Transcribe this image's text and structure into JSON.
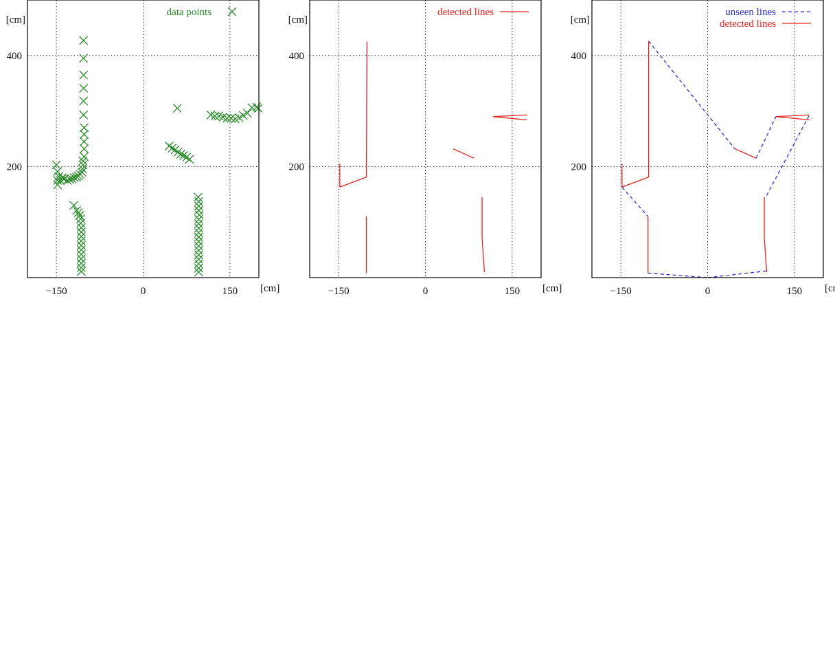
{
  "chart_data": [
    {
      "type": "scatter",
      "xlabel": "[cm]",
      "ylabel": "[cm]",
      "xlim": [
        -200,
        200
      ],
      "ylim": [
        0,
        500
      ],
      "xticks": [
        -150,
        0,
        150
      ],
      "yticks": [
        200,
        400
      ],
      "grid": true,
      "legend_position": "top-right",
      "series": [
        {
          "name": "data points",
          "color": "#2a8c2a",
          "marker": "x",
          "points": [
            [
              -150,
              203
            ],
            [
              -148,
              191
            ],
            [
              -148,
              175
            ],
            [
              -148,
              167
            ],
            [
              -146,
              182
            ],
            [
              -143,
              175
            ],
            [
              -140,
              180
            ],
            [
              -136,
              178
            ],
            [
              -131,
              175
            ],
            [
              -127,
              177
            ],
            [
              -123,
              178
            ],
            [
              -119,
              180
            ],
            [
              -115,
              181
            ],
            [
              -112,
              183
            ],
            [
              -109,
              186
            ],
            [
              -106,
              190
            ],
            [
              -105,
              196
            ],
            [
              -104,
              203
            ],
            [
              -104,
              210
            ],
            [
              -102,
              218
            ],
            [
              -102,
              232
            ],
            [
              -102,
              245
            ],
            [
              -102,
              258
            ],
            [
              -102,
              270
            ],
            [
              -103,
              293
            ],
            [
              -103,
              318
            ],
            [
              -103,
              341
            ],
            [
              -103,
              365
            ],
            [
              -103,
              395
            ],
            [
              -103,
              427
            ],
            [
              -120,
              130
            ],
            [
              -115,
              121
            ],
            [
              -112,
              117
            ],
            [
              -110,
              112
            ],
            [
              -108,
              106
            ],
            [
              -108,
              98
            ],
            [
              -107,
              90
            ],
            [
              -107,
              82
            ],
            [
              -107,
              74
            ],
            [
              -107,
              66
            ],
            [
              -107,
              58
            ],
            [
              -107,
              50
            ],
            [
              -107,
              42
            ],
            [
              -107,
              34
            ],
            [
              -107,
              26
            ],
            [
              -107,
              18
            ],
            [
              -107,
              11
            ],
            [
              95,
              145
            ],
            [
              96,
              137
            ],
            [
              96,
              129
            ],
            [
              96,
              121
            ],
            [
              97,
              113
            ],
            [
              96,
              105
            ],
            [
              96,
              97
            ],
            [
              96,
              89
            ],
            [
              96,
              81
            ],
            [
              96,
              73
            ],
            [
              96,
              65
            ],
            [
              96,
              57
            ],
            [
              96,
              49
            ],
            [
              96,
              41
            ],
            [
              96,
              33
            ],
            [
              96,
              25
            ],
            [
              96,
              17
            ],
            [
              96,
              10
            ],
            [
              59,
              305
            ],
            [
              45,
              237
            ],
            [
              50,
              233
            ],
            [
              55,
              230
            ],
            [
              60,
              226
            ],
            [
              65,
              222
            ],
            [
              70,
              220
            ],
            [
              75,
              217
            ],
            [
              80,
              213
            ],
            [
              117,
              293
            ],
            [
              124,
              291
            ],
            [
              131,
              291
            ],
            [
              138,
              289
            ],
            [
              145,
              287
            ],
            [
              152,
              287
            ],
            [
              159,
              286
            ],
            [
              166,
              288
            ],
            [
              173,
              292
            ],
            [
              180,
              296
            ],
            [
              188,
              306
            ],
            [
              196,
              307
            ],
            [
              199,
              305
            ]
          ]
        }
      ]
    },
    {
      "type": "line",
      "xlabel": "[cm]",
      "ylabel": "[cm]",
      "xlim": [
        -200,
        200
      ],
      "ylim": [
        0,
        500
      ],
      "xticks": [
        -150,
        0,
        150
      ],
      "yticks": [
        200,
        400
      ],
      "grid": true,
      "legend_position": "top-right",
      "series": [
        {
          "name": "detected lines",
          "color": "#e8201d",
          "dash": "solid",
          "segments": [
            [
              [
                -148,
                205
              ],
              [
                -148,
                163
              ]
            ],
            [
              [
                -148,
                163
              ],
              [
                -102,
                181
              ]
            ],
            [
              [
                -102,
                181
              ],
              [
                -101,
                425
              ]
            ],
            [
              [
                -102,
                110
              ],
              [
                -102,
                8
              ]
            ],
            [
              [
                48,
                232
              ],
              [
                84,
                215
              ]
            ],
            [
              [
                98,
                145
              ],
              [
                98,
                72
              ]
            ],
            [
              [
                98,
                72
              ],
              [
                102,
                10
              ]
            ],
            [
              [
                117,
                290
              ],
              [
                176,
                293
              ]
            ],
            [
              [
                117,
                290
              ],
              [
                175,
                284
              ]
            ]
          ]
        }
      ]
    },
    {
      "type": "line",
      "xlabel": "[cm]",
      "ylabel": "[cm]",
      "xlim": [
        -200,
        200
      ],
      "ylim": [
        0,
        500
      ],
      "xticks": [
        -150,
        0,
        150
      ],
      "yticks": [
        200,
        400
      ],
      "grid": true,
      "legend_position": "top-right",
      "series": [
        {
          "name": "unseen lines",
          "color": "#2b2bd6",
          "dash": "dashed",
          "segments": [
            [
              [
                -148,
                163
              ],
              [
                -103,
                110
              ]
            ],
            [
              [
                -103,
                8
              ],
              [
                0,
                0
              ]
            ],
            [
              [
                0,
                0
              ],
              [
                102,
                12
              ]
            ],
            [
              [
                102,
                148
              ],
              [
                176,
                293
              ]
            ],
            [
              [
                -102,
                426
              ],
              [
                47,
                232
              ]
            ],
            [
              [
                84,
                215
              ],
              [
                118,
                290
              ]
            ]
          ]
        },
        {
          "name": "detected lines",
          "color": "#e8201d",
          "dash": "solid",
          "segments": [
            [
              [
                -148,
                205
              ],
              [
                -148,
                163
              ]
            ],
            [
              [
                -148,
                163
              ],
              [
                -102,
                181
              ]
            ],
            [
              [
                -102,
                181
              ],
              [
                -102,
                426
              ]
            ],
            [
              [
                -103,
                110
              ],
              [
                -103,
                8
              ]
            ],
            [
              [
                47,
                232
              ],
              [
                84,
                215
              ]
            ],
            [
              [
                98,
                145
              ],
              [
                98,
                72
              ]
            ],
            [
              [
                98,
                72
              ],
              [
                102,
                10
              ]
            ],
            [
              [
                118,
                290
              ],
              [
                176,
                293
              ]
            ],
            [
              [
                118,
                290
              ],
              [
                176,
                284
              ]
            ]
          ]
        }
      ]
    }
  ]
}
